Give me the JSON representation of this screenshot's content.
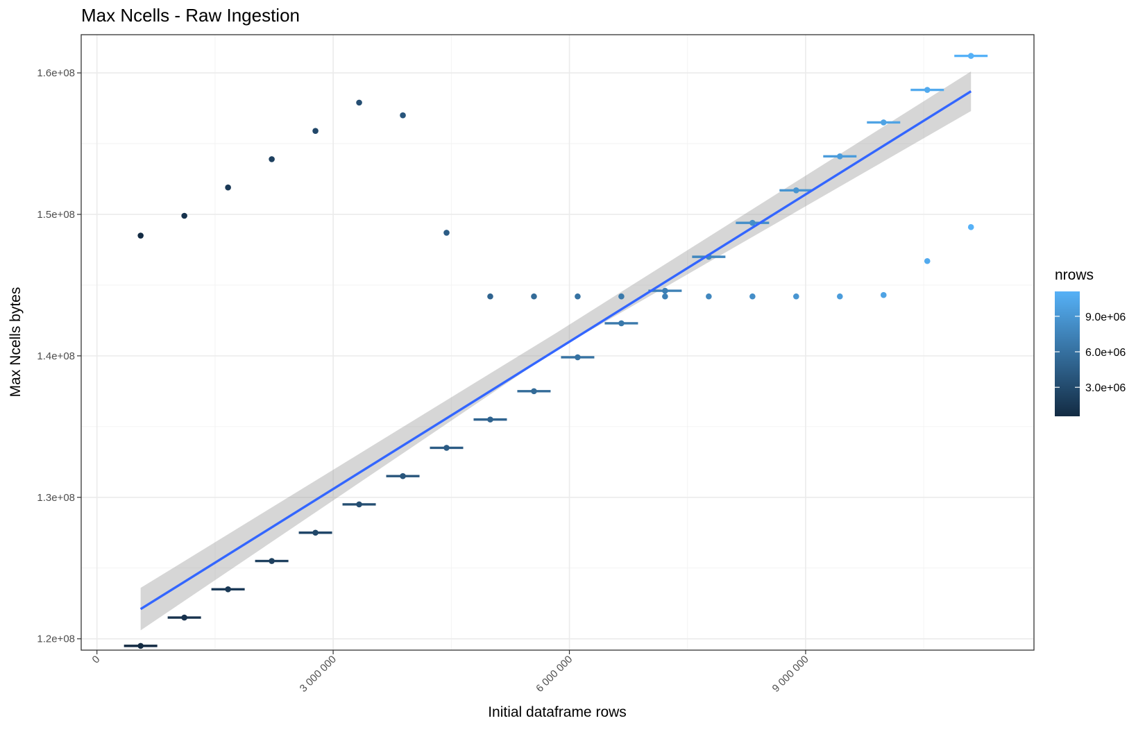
{
  "chart_data": {
    "type": "scatter",
    "title": "Max Ncells - Raw Ingestion",
    "xlabel": "Initial dataframe rows",
    "ylabel": "Max Ncells bytes",
    "xlim": [
      -200000,
      11900000
    ],
    "ylim": [
      119200000,
      162700000
    ],
    "x_ticks": [
      0,
      3000000,
      6000000,
      9000000
    ],
    "x_tick_labels": [
      "0",
      "3 000 000",
      "6 000 000",
      "9 000 000"
    ],
    "y_ticks": [
      120000000,
      130000000,
      140000000,
      150000000,
      160000000
    ],
    "y_tick_labels": [
      "1.2e+08",
      "1.3e+08",
      "1.4e+08",
      "1.5e+08",
      "1.6e+08"
    ],
    "grid": true,
    "colors": {
      "gradient_low": "#132B43",
      "gradient_high": "#56B1F7",
      "smooth_line": "#3366FF",
      "confidence_band": "#999999"
    },
    "legend": {
      "title": "nrows",
      "placement": "right",
      "labels": [
        "9.0e+06",
        "6.0e+06",
        "3.0e+06"
      ],
      "values": [
        9000000,
        6000000,
        3000000
      ],
      "range": [
        550000,
        11100000
      ]
    },
    "series": [
      {
        "kind": "segments",
        "points": [
          {
            "x": 555000,
            "y": 119500000,
            "nrows": 555000
          },
          {
            "x": 1110000,
            "y": 121500000,
            "nrows": 1110000
          },
          {
            "x": 1665000,
            "y": 123500000,
            "nrows": 1665000
          },
          {
            "x": 2220000,
            "y": 125500000,
            "nrows": 2220000
          },
          {
            "x": 2775000,
            "y": 127500000,
            "nrows": 2775000
          },
          {
            "x": 3330000,
            "y": 129500000,
            "nrows": 3330000
          },
          {
            "x": 3885000,
            "y": 131500000,
            "nrows": 3885000
          },
          {
            "x": 4440000,
            "y": 133500000,
            "nrows": 4440000
          },
          {
            "x": 4995000,
            "y": 135500000,
            "nrows": 4995000
          },
          {
            "x": 5550000,
            "y": 137500000,
            "nrows": 5550000
          },
          {
            "x": 6105000,
            "y": 139900000,
            "nrows": 6105000
          },
          {
            "x": 6660000,
            "y": 142300000,
            "nrows": 6660000
          },
          {
            "x": 7215000,
            "y": 144600000,
            "nrows": 7215000
          },
          {
            "x": 7770000,
            "y": 147000000,
            "nrows": 7770000
          },
          {
            "x": 8325000,
            "y": 149400000,
            "nrows": 8325000
          },
          {
            "x": 8880000,
            "y": 151700000,
            "nrows": 8880000
          },
          {
            "x": 9435000,
            "y": 154100000,
            "nrows": 9435000
          },
          {
            "x": 9990000,
            "y": 156500000,
            "nrows": 9990000
          },
          {
            "x": 10545000,
            "y": 158800000,
            "nrows": 10545000
          },
          {
            "x": 11100000,
            "y": 161200000,
            "nrows": 11100000
          }
        ]
      },
      {
        "kind": "points",
        "points": [
          {
            "x": 555000,
            "y": 148500000,
            "nrows": 555000
          },
          {
            "x": 1110000,
            "y": 149900000,
            "nrows": 1110000
          },
          {
            "x": 1665000,
            "y": 151900000,
            "nrows": 1665000
          },
          {
            "x": 2220000,
            "y": 153900000,
            "nrows": 2220000
          },
          {
            "x": 2775000,
            "y": 155900000,
            "nrows": 2775000
          },
          {
            "x": 3330000,
            "y": 157900000,
            "nrows": 3330000
          },
          {
            "x": 3885000,
            "y": 157000000,
            "nrows": 3885000
          },
          {
            "x": 4440000,
            "y": 148700000,
            "nrows": 4440000
          },
          {
            "x": 4995000,
            "y": 144200000,
            "nrows": 4995000
          },
          {
            "x": 5550000,
            "y": 144200000,
            "nrows": 5550000
          },
          {
            "x": 6105000,
            "y": 144200000,
            "nrows": 6105000
          },
          {
            "x": 6660000,
            "y": 144200000,
            "nrows": 6660000
          },
          {
            "x": 7215000,
            "y": 144200000,
            "nrows": 7215000
          },
          {
            "x": 7770000,
            "y": 144200000,
            "nrows": 7770000
          },
          {
            "x": 8325000,
            "y": 144200000,
            "nrows": 8325000
          },
          {
            "x": 8880000,
            "y": 144200000,
            "nrows": 8880000
          },
          {
            "x": 9435000,
            "y": 144200000,
            "nrows": 9435000
          },
          {
            "x": 9990000,
            "y": 144300000,
            "nrows": 9990000
          },
          {
            "x": 10545000,
            "y": 146700000,
            "nrows": 10545000
          },
          {
            "x": 11100000,
            "y": 149100000,
            "nrows": 11100000
          }
        ]
      },
      {
        "kind": "smooth",
        "method": "lm",
        "x_range": [
          555000,
          11100000
        ],
        "y_start": 122100000,
        "y_end": 158700000,
        "ci_start": [
          120600000,
          123600000
        ],
        "ci_mid": [
          140400000,
          141600000
        ],
        "ci_end": [
          157300000,
          160100000
        ]
      }
    ]
  }
}
